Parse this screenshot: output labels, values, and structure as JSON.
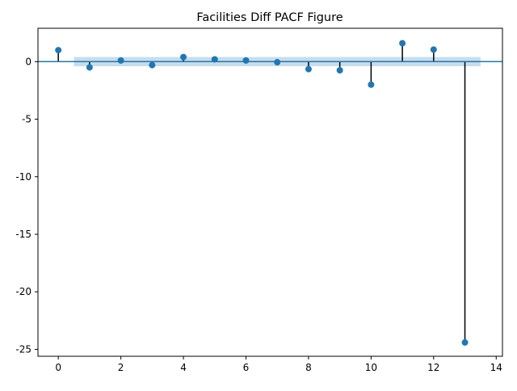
{
  "chart_data": {
    "type": "stem",
    "title": "Facilities Diff PACF Figure",
    "xlabel": "",
    "ylabel": "",
    "xlim": [
      -0.65,
      14.2
    ],
    "ylim": [
      -25.6,
      2.9
    ],
    "xticks": [
      0,
      2,
      4,
      6,
      8,
      10,
      12,
      14
    ],
    "yticks": [
      0,
      -5,
      -10,
      -15,
      -20,
      -25
    ],
    "grid": false,
    "lags": [
      0,
      1,
      2,
      3,
      4,
      5,
      6,
      7,
      8,
      9,
      10,
      11,
      12,
      13
    ],
    "values": [
      1.0,
      -0.5,
      0.1,
      -0.3,
      0.4,
      0.2,
      0.1,
      -0.05,
      -0.65,
      -0.75,
      -2.0,
      1.6,
      1.05,
      -24.4
    ],
    "confidence_band": {
      "x_start": 0.5,
      "x_end": 13.5,
      "lower": -0.4,
      "upper": 0.4
    },
    "colors": {
      "marker": "#1f77b4",
      "stem": "#000000",
      "baseline": "#1f77b4",
      "band": "#1f77b4"
    }
  }
}
